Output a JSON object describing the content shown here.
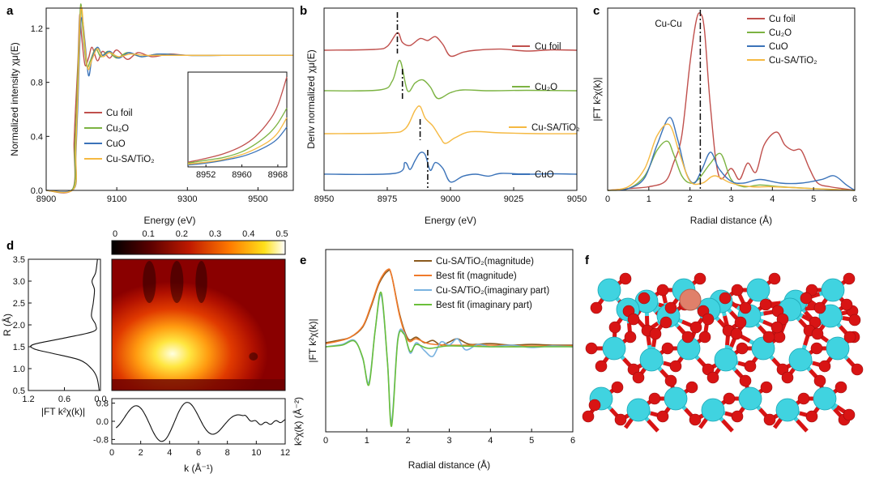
{
  "panel_labels": {
    "a": "a",
    "b": "b",
    "c": "c",
    "d": "d",
    "e": "e",
    "f": "f"
  },
  "colors": {
    "cu_foil": "#c0504d",
    "cu2o": "#7cb342",
    "cuo": "#3b73b9",
    "cusa": "#f5b942",
    "e_mag": "#8b5a1e",
    "e_fit": "#f07a2a",
    "e_imag": "#7ab3e0",
    "e_fit_imag": "#6abf3a",
    "ti": "#40d3e0",
    "o": "#d81414",
    "cu_atom": "#e0806a"
  },
  "chart_data": [
    {
      "id": "a",
      "type": "line",
      "xlabel": "Energy (eV)",
      "ylabel": "Normalized intensity χμ(E)",
      "xlim": [
        8900,
        9600
      ],
      "ylim": [
        0,
        1.35
      ],
      "xticks": [
        8900,
        9100,
        9300,
        9500
      ],
      "yticks": [
        0.0,
        0.4,
        0.8,
        1.2
      ],
      "legend": {
        "position": "lower-left",
        "entries": [
          "Cu foil",
          "Cu₂O",
          "CuO",
          "Cu-SA/TiO₂"
        ]
      },
      "series": [
        {
          "name": "Cu foil",
          "color_key": "cu_foil",
          "x": [
            8900,
            8975,
            8979,
            8983,
            8990,
            8995,
            9000,
            9010,
            9020,
            9030,
            9045,
            9060,
            9080,
            9100,
            9130,
            9160,
            9200,
            9250,
            9300,
            9400,
            9500,
            9600
          ],
          "y": [
            0.0,
            0.01,
            0.35,
            0.6,
            0.95,
            1.3,
            1.15,
            0.93,
            0.98,
            1.06,
            0.96,
            1.03,
            0.98,
            1.04,
            0.97,
            1.02,
            0.99,
            1.01,
            1.0,
            1.0,
            1.0,
            1.0
          ]
        },
        {
          "name": "Cu₂O",
          "color_key": "cu2o",
          "x": [
            8900,
            8975,
            8981,
            8986,
            8993,
            8998,
            9005,
            9015,
            9025,
            9040,
            9055,
            9075,
            9100,
            9130,
            9170,
            9220,
            9300,
            9400,
            9500,
            9600
          ],
          "y": [
            0.0,
            0.01,
            0.3,
            0.6,
            1.1,
            1.38,
            1.15,
            0.92,
            0.96,
            1.05,
            0.99,
            1.03,
            0.98,
            1.02,
            0.99,
            1.01,
            1.0,
            1.0,
            1.0,
            1.0
          ]
        },
        {
          "name": "CuO",
          "color_key": "cuo",
          "x": [
            8900,
            8978,
            8984,
            8990,
            8996,
            9002,
            9010,
            9020,
            9030,
            9045,
            9060,
            9080,
            9105,
            9135,
            9170,
            9220,
            9300,
            9400,
            9500,
            9600
          ],
          "y": [
            0.0,
            0.01,
            0.25,
            0.65,
            1.15,
            1.28,
            1.1,
            0.85,
            0.98,
            1.06,
            1.0,
            1.03,
            0.98,
            1.02,
            0.99,
            1.01,
            1.0,
            1.0,
            1.0,
            1.0
          ]
        },
        {
          "name": "Cu-SA/TiO₂",
          "color_key": "cusa",
          "x": [
            8900,
            8978,
            8984,
            8990,
            8996,
            9001,
            9008,
            9018,
            9030,
            9045,
            9060,
            9080,
            9105,
            9140,
            9180,
            9230,
            9300,
            9400,
            9500,
            9600
          ],
          "y": [
            0.0,
            0.01,
            0.3,
            0.75,
            1.25,
            1.35,
            1.12,
            0.9,
            0.97,
            1.05,
            0.99,
            1.02,
            0.99,
            1.01,
            1.0,
            1.0,
            1.0,
            1.0,
            1.0,
            1.0
          ]
        }
      ],
      "inset": {
        "xlim": [
          8948,
          8970
        ],
        "ylim": [
          0,
          1
        ],
        "xticks": [
          8952,
          8960,
          8968
        ],
        "series": [
          {
            "name": "Cu foil",
            "color_key": "cu_foil",
            "x": [
              8948,
              8952,
              8956,
              8960,
              8963,
              8966,
              8968,
              8970
            ],
            "y": [
              0.05,
              0.09,
              0.14,
              0.22,
              0.32,
              0.48,
              0.65,
              0.95
            ]
          },
          {
            "name": "Cu₂O",
            "color_key": "cu2o",
            "x": [
              8948,
              8952,
              8956,
              8960,
              8963,
              8966,
              8968,
              8970
            ],
            "y": [
              0.04,
              0.07,
              0.1,
              0.16,
              0.24,
              0.35,
              0.46,
              0.62
            ]
          },
          {
            "name": "CuO",
            "color_key": "cuo",
            "x": [
              8948,
              8952,
              8956,
              8960,
              8963,
              8966,
              8968,
              8970
            ],
            "y": [
              0.02,
              0.04,
              0.07,
              0.11,
              0.16,
              0.23,
              0.3,
              0.42
            ]
          },
          {
            "name": "Cu-SA/TiO₂",
            "color_key": "cusa",
            "x": [
              8948,
              8952,
              8956,
              8960,
              8963,
              8966,
              8968,
              8970
            ],
            "y": [
              0.03,
              0.05,
              0.08,
              0.13,
              0.19,
              0.27,
              0.36,
              0.52
            ]
          }
        ]
      }
    },
    {
      "id": "b",
      "type": "line",
      "xlabel": "Energy (eV)",
      "ylabel": "Deriv normalized χμ(E)",
      "xlim": [
        8950,
        9050
      ],
      "xticks": [
        8950,
        8975,
        9000,
        9025,
        9050
      ],
      "dashed_markers": [
        8979,
        8981,
        8988,
        8991
      ],
      "series": [
        {
          "name": "Cu foil",
          "color_key": "cu_foil",
          "offset": 3.0,
          "x": [
            8950,
            8970,
            8975,
            8979,
            8981,
            8984,
            8988,
            8991,
            8994,
            8997,
            9000,
            9005,
            9010,
            9020,
            9030,
            9040,
            9050
          ],
          "y": [
            0,
            0.02,
            0.1,
            0.45,
            0.2,
            0.12,
            0.3,
            0.25,
            0.35,
            0.15,
            -0.15,
            -0.05,
            0.0,
            0.03,
            -0.02,
            0.01,
            0.0
          ]
        },
        {
          "name": "Cu₂O",
          "color_key": "cu2o",
          "offset": 2.0,
          "x": [
            8950,
            8972,
            8977,
            8980,
            8983,
            8986,
            8989,
            8992,
            8995,
            9000,
            9005,
            9015,
            9030,
            9050
          ],
          "y": [
            0,
            0.02,
            0.25,
            0.78,
            0.0,
            0.2,
            0.28,
            0.1,
            -0.2,
            -0.05,
            0.02,
            0.0,
            0.01,
            0.0
          ]
        },
        {
          "name": "Cu-SA/TiO₂",
          "color_key": "cusa",
          "offset": 1.0,
          "x": [
            8950,
            8975,
            8982,
            8986,
            8988,
            8990,
            8993,
            8996,
            8998,
            9002,
            9008,
            9020,
            9035,
            9050
          ],
          "y": [
            0,
            0.02,
            0.12,
            0.6,
            0.7,
            0.4,
            0.2,
            -0.1,
            -0.25,
            -0.1,
            0.05,
            0.02,
            0.0,
            0.0
          ]
        },
        {
          "name": "CuO",
          "color_key": "cuo",
          "offset": 0.0,
          "x": [
            8950,
            8978,
            8982,
            8984,
            8986,
            8988,
            8990,
            8992,
            8994,
            8997,
            9000,
            9005,
            9010,
            9015,
            9020,
            9030,
            9040,
            9050
          ],
          "y": [
            0,
            0.02,
            0.3,
            0.12,
            0.35,
            0.55,
            0.5,
            0.1,
            0.3,
            0.15,
            -0.2,
            -0.05,
            0.0,
            -0.05,
            0.02,
            0.0,
            0.01,
            0.0
          ]
        }
      ],
      "labels": [
        "Cu foil",
        "Cu₂O",
        "Cu-SA/TiO₂",
        "CuO"
      ]
    },
    {
      "id": "c",
      "type": "line",
      "xlabel": "Radial distance (Å)",
      "ylabel": "|FT k²χ(k)|",
      "xlim": [
        0,
        6
      ],
      "ylim": [
        0,
        1.0
      ],
      "xticks": [
        0,
        1,
        2,
        3,
        4,
        5,
        6
      ],
      "annotation": {
        "text": "Cu-Cu",
        "x": 2.25
      },
      "legend": {
        "position": "top-right",
        "entries": [
          "Cu foil",
          "Cu₂O",
          "CuO",
          "Cu-SA/TiO₂"
        ]
      },
      "series": [
        {
          "name": "Cu foil",
          "color_key": "cu_foil",
          "x": [
            0,
            0.5,
            1.0,
            1.4,
            1.6,
            1.8,
            2.0,
            2.15,
            2.25,
            2.35,
            2.5,
            2.7,
            3.0,
            3.2,
            3.4,
            3.6,
            3.8,
            4.1,
            4.3,
            4.5,
            4.7,
            4.9,
            5.1,
            5.4,
            5.7,
            6.0
          ],
          "y": [
            0.0,
            0.01,
            0.02,
            0.05,
            0.15,
            0.3,
            0.7,
            0.93,
            0.97,
            0.88,
            0.45,
            0.08,
            0.12,
            0.06,
            0.15,
            0.1,
            0.25,
            0.32,
            0.25,
            0.22,
            0.22,
            0.12,
            0.04,
            0.02,
            0.01,
            0.0
          ]
        },
        {
          "name": "Cu₂O",
          "color_key": "cu2o",
          "x": [
            0,
            0.5,
            0.9,
            1.2,
            1.45,
            1.6,
            1.8,
            2.0,
            2.2,
            2.5,
            2.75,
            3.0,
            3.3,
            3.7,
            4.2,
            5.0,
            6.0
          ],
          "y": [
            0.0,
            0.01,
            0.08,
            0.22,
            0.27,
            0.2,
            0.08,
            0.04,
            0.06,
            0.15,
            0.2,
            0.06,
            0.02,
            0.03,
            0.02,
            0.01,
            0.0
          ]
        },
        {
          "name": "CuO",
          "color_key": "cuo",
          "x": [
            0,
            0.5,
            0.9,
            1.2,
            1.5,
            1.7,
            1.9,
            2.1,
            2.3,
            2.5,
            2.7,
            3.0,
            3.3,
            3.7,
            4.2,
            4.7,
            5.2,
            5.5,
            5.8,
            6.0
          ],
          "y": [
            0.0,
            0.01,
            0.07,
            0.25,
            0.4,
            0.28,
            0.1,
            0.04,
            0.12,
            0.21,
            0.12,
            0.05,
            0.04,
            0.06,
            0.04,
            0.04,
            0.06,
            0.08,
            0.03,
            0.0
          ]
        },
        {
          "name": "Cu-SA/TiO₂",
          "color_key": "cusa",
          "x": [
            0,
            0.5,
            0.9,
            1.2,
            1.5,
            1.75,
            2.0,
            2.3,
            2.6,
            3.0,
            3.5,
            4.0,
            5.0,
            6.0
          ],
          "y": [
            0.0,
            0.02,
            0.12,
            0.3,
            0.36,
            0.2,
            0.05,
            0.04,
            0.08,
            0.04,
            0.02,
            0.02,
            0.01,
            0.0
          ]
        }
      ]
    },
    {
      "id": "d",
      "type": "heatmap",
      "colorbar": {
        "min": 0,
        "max": 0.5,
        "ticks": [
          0,
          0.1,
          0.2,
          0.3,
          0.4,
          0.5
        ]
      },
      "heatmap": {
        "xlabel": "k (Å⁻¹)",
        "ylabel": "R (Å)",
        "xlim": [
          0,
          12
        ],
        "ylim": [
          0.5,
          3.5
        ],
        "peak_k": 4.0,
        "peak_R": 1.4
      },
      "left_profile": {
        "xlabel": "|FT k²χ(k)|",
        "xlim": [
          1.2,
          0.0
        ],
        "xticks": [
          1.2,
          0.6,
          0.0
        ],
        "yticks": [
          0.5,
          1.0,
          1.5,
          2.0,
          2.5,
          3.0,
          3.5
        ],
        "R": [
          0.5,
          0.8,
          1.0,
          1.2,
          1.35,
          1.45,
          1.55,
          1.7,
          1.85,
          2.0,
          2.2,
          2.5,
          2.8,
          3.0,
          3.2,
          3.5
        ],
        "values": [
          0.02,
          0.06,
          0.15,
          0.35,
          0.8,
          1.1,
          1.12,
          0.6,
          0.12,
          0.08,
          0.15,
          0.12,
          0.1,
          0.14,
          0.08,
          0.05
        ]
      },
      "bottom_profile": {
        "xlabel": "k (Å⁻¹)",
        "ylabel": "k²χ(k) (Å⁻²)",
        "xlim": [
          0,
          12
        ],
        "xticks": [
          0,
          2,
          4,
          6,
          8,
          10,
          12
        ],
        "yticks": [
          0.8,
          0.0,
          -0.8
        ],
        "ylim": [
          -1.0,
          1.0
        ]
      }
    },
    {
      "id": "e",
      "type": "line",
      "xlabel": "Radial distance (Å)",
      "ylabel": "|FT k²χ(k)|",
      "xlim": [
        0,
        6
      ],
      "xticks": [
        0,
        1,
        2,
        3,
        4,
        5,
        6
      ],
      "legend": {
        "position": "top-right",
        "entries": [
          "Cu-SA/TiO₂(magnitude)",
          "Best fit (magnitude)",
          "Cu-SA/TiO₂(imaginary part)",
          "Best fit (imaginary part)"
        ]
      },
      "series": [
        {
          "name": "Cu-SA/TiO₂(magnitude)",
          "color_key": "e_mag",
          "x": [
            0,
            0.3,
            0.6,
            0.9,
            1.1,
            1.3,
            1.5,
            1.6,
            1.8,
            2.0,
            2.2,
            2.4,
            2.6,
            2.8,
            3.0,
            3.2,
            3.5,
            4.0,
            4.5,
            5.0,
            5.5,
            6.0
          ],
          "y": [
            0.05,
            0.08,
            0.12,
            0.25,
            0.5,
            0.8,
            0.95,
            0.9,
            0.4,
            0.1,
            0.12,
            0.05,
            0.08,
            0.02,
            0.06,
            0.1,
            0.03,
            0.04,
            0.02,
            0.03,
            0.02,
            0.02
          ]
        },
        {
          "name": "Best fit (magnitude)",
          "color_key": "e_fit",
          "x": [
            0,
            0.3,
            0.6,
            0.9,
            1.1,
            1.3,
            1.5,
            1.6,
            1.8,
            2.0,
            2.2,
            2.5,
            3.0,
            4.0,
            5.0,
            6.0
          ],
          "y": [
            0.04,
            0.07,
            0.12,
            0.26,
            0.52,
            0.82,
            0.97,
            0.9,
            0.38,
            0.08,
            0.1,
            0.04,
            0.02,
            0.02,
            0.01,
            0.01
          ]
        },
        {
          "name": "Cu-SA/TiO₂(imaginary part)",
          "color_key": "e_imag",
          "x": [
            0,
            0.4,
            0.7,
            0.9,
            1.05,
            1.2,
            1.35,
            1.5,
            1.6,
            1.75,
            1.9,
            2.05,
            2.2,
            2.4,
            2.6,
            2.8,
            3.0,
            3.2,
            3.4,
            3.7,
            4.0,
            4.5,
            5.0,
            5.5,
            6.0
          ],
          "y": [
            0.0,
            0.03,
            0.08,
            -0.15,
            -0.45,
            0.2,
            0.65,
            -0.2,
            -0.95,
            0.1,
            0.18,
            -0.08,
            0.05,
            -0.05,
            -0.12,
            0.06,
            0.02,
            0.1,
            -0.04,
            0.03,
            0.0,
            0.02,
            -0.01,
            0.01,
            0.0
          ]
        },
        {
          "name": "Best fit (imaginary part)",
          "color_key": "e_fit_imag",
          "x": [
            0,
            0.4,
            0.7,
            0.9,
            1.05,
            1.2,
            1.35,
            1.5,
            1.6,
            1.75,
            1.9,
            2.05,
            2.2,
            2.5,
            3.0,
            4.0,
            5.0,
            6.0
          ],
          "y": [
            0.0,
            0.02,
            0.07,
            -0.14,
            -0.48,
            0.2,
            0.68,
            -0.2,
            -1.0,
            0.08,
            0.16,
            -0.06,
            0.03,
            -0.02,
            0.01,
            0.0,
            0.0,
            0.0
          ]
        }
      ]
    }
  ]
}
